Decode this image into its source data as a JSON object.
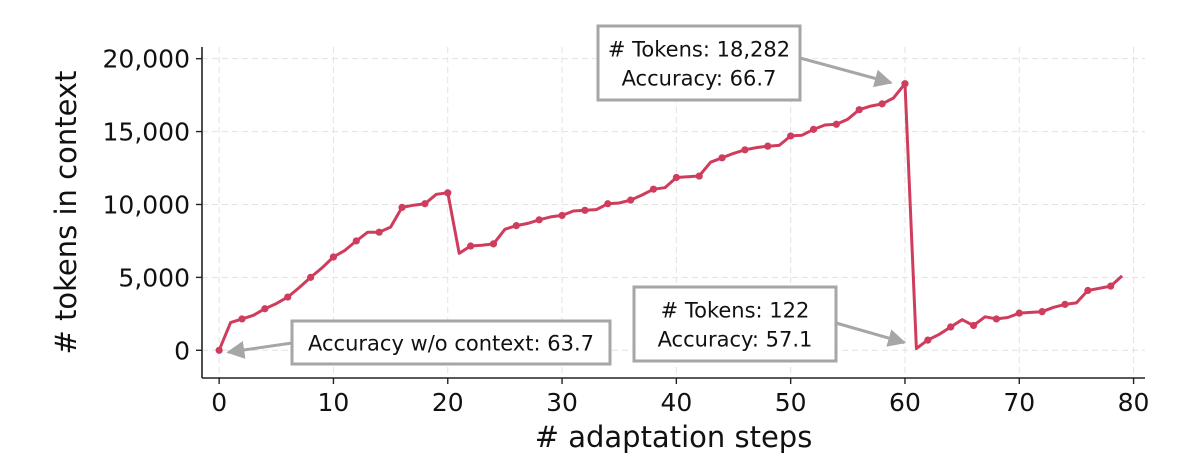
{
  "chart_data": {
    "type": "line",
    "xlabel": "# adaptation steps",
    "ylabel": "# tokens in context",
    "xlim": [
      -1.5,
      81
    ],
    "ylim": [
      -1900,
      20800
    ],
    "xticks": [
      0,
      10,
      20,
      30,
      40,
      50,
      60,
      70,
      80
    ],
    "xtick_labels": [
      "0",
      "10",
      "20",
      "30",
      "40",
      "50",
      "60",
      "70",
      "80"
    ],
    "yticks": [
      0,
      5000,
      10000,
      15000,
      20000
    ],
    "ytick_labels": [
      "0",
      "5,000",
      "10,000",
      "15,000",
      "20,000"
    ],
    "grid": true,
    "color": "#cf3c5c",
    "series": [
      {
        "x": [
          0,
          1,
          2,
          3,
          4,
          5,
          6,
          7,
          8,
          9,
          10,
          11,
          12,
          13,
          14,
          15,
          16,
          17,
          18,
          19,
          20,
          21,
          22,
          23,
          24,
          25,
          26,
          27,
          28,
          29,
          30,
          31,
          32,
          33,
          34,
          35,
          36,
          37,
          38,
          39,
          40,
          41,
          42,
          43,
          44,
          45,
          46,
          47,
          48,
          49,
          50,
          51,
          52,
          53,
          54,
          55,
          56,
          57,
          58,
          59,
          60,
          61,
          62,
          63,
          64,
          65,
          66,
          67,
          68,
          69,
          70,
          71,
          72,
          73,
          74,
          75,
          76,
          77,
          78,
          79
        ],
        "values": [
          0,
          1900,
          2150,
          2400,
          2850,
          3200,
          3650,
          4300,
          5000,
          5650,
          6400,
          6850,
          7500,
          8100,
          8100,
          8450,
          9800,
          9950,
          10050,
          10700,
          10800,
          6650,
          7150,
          7200,
          7300,
          8300,
          8550,
          8700,
          8950,
          9150,
          9250,
          9550,
          9600,
          9650,
          10050,
          10100,
          10300,
          10650,
          11050,
          11150,
          11850,
          11900,
          11950,
          12900,
          13200,
          13500,
          13750,
          13900,
          14000,
          14050,
          14700,
          14750,
          15150,
          15450,
          15500,
          15850,
          16500,
          16750,
          16900,
          17300,
          18282,
          122,
          700,
          1100,
          1600,
          2100,
          1700,
          2300,
          2150,
          2250,
          2550,
          2600,
          2650,
          2950,
          3150,
          3250,
          4100,
          4250,
          4400,
          5100
        ],
        "marked": [
          0,
          2,
          4,
          6,
          8,
          10,
          12,
          14,
          16,
          18,
          20,
          22,
          24,
          26,
          28,
          30,
          32,
          34,
          36,
          38,
          40,
          42,
          44,
          46,
          48,
          50,
          52,
          54,
          56,
          58,
          60,
          62,
          64,
          66,
          68,
          70,
          72,
          74,
          76,
          78
        ]
      }
    ],
    "annotations": [
      {
        "lines": [
          "Accuracy w/o context: 63.7"
        ],
        "target": [
          0,
          0
        ]
      },
      {
        "lines": [
          "# Tokens: 18,282",
          "Accuracy: 66.7"
        ],
        "target": [
          60,
          18282
        ]
      },
      {
        "lines": [
          "# Tokens: 122",
          "Accuracy: 57.1"
        ],
        "target": [
          61,
          122
        ]
      }
    ]
  }
}
